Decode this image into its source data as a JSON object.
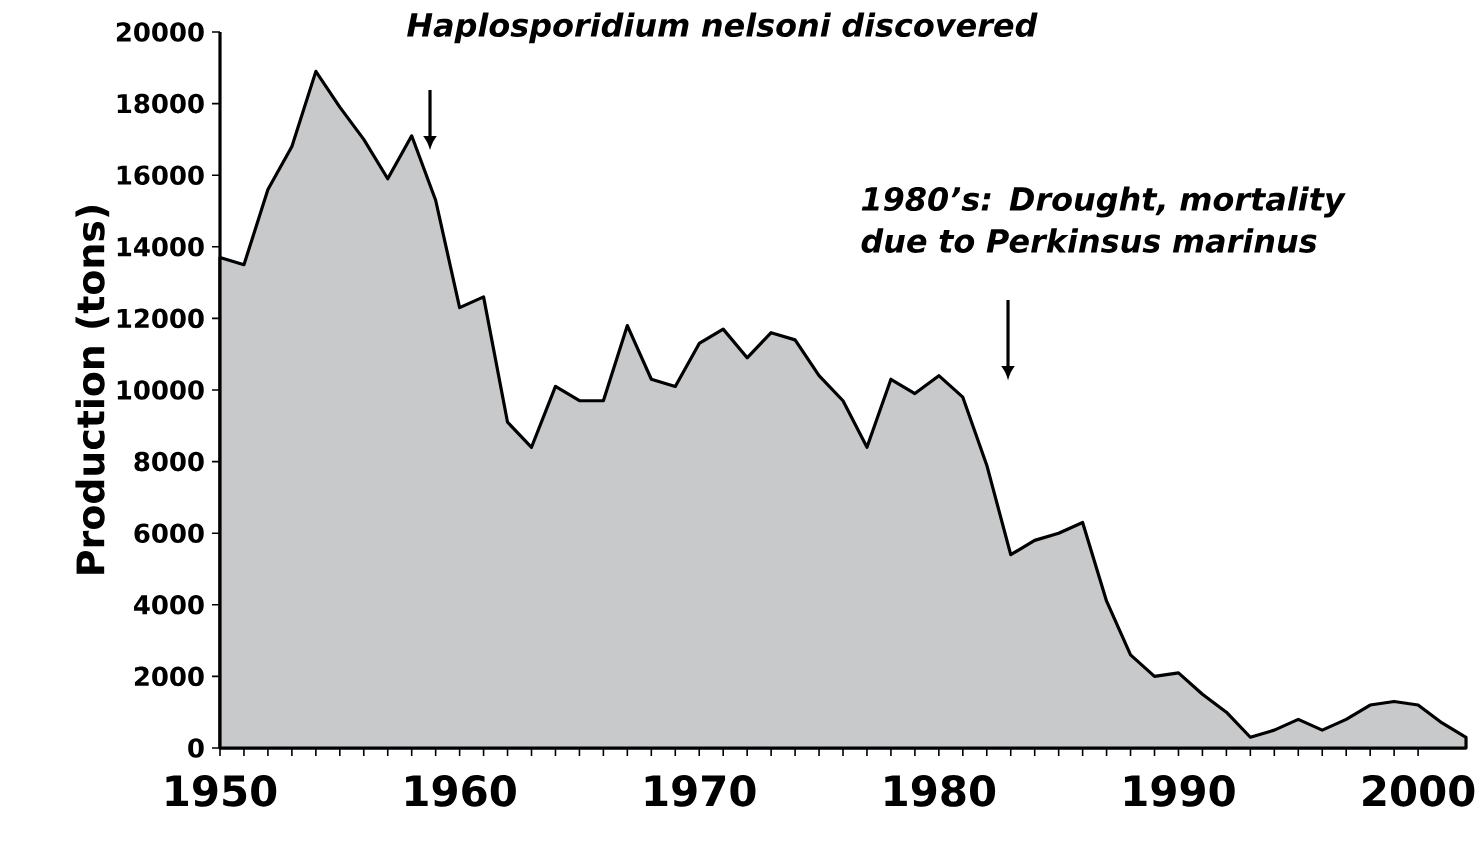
{
  "chart_data": {
    "type": "area",
    "ylabel": "Production (tons)",
    "x": [
      1950,
      1951,
      1952,
      1953,
      1954,
      1955,
      1956,
      1957,
      1958,
      1959,
      1960,
      1961,
      1962,
      1963,
      1964,
      1965,
      1966,
      1967,
      1968,
      1969,
      1970,
      1971,
      1972,
      1973,
      1974,
      1975,
      1976,
      1977,
      1978,
      1979,
      1980,
      1981,
      1982,
      1983,
      1984,
      1985,
      1986,
      1987,
      1988,
      1989,
      1990,
      1991,
      1992,
      1993,
      1994,
      1995,
      1996,
      1997,
      1998,
      1999,
      2000,
      2001,
      2002
    ],
    "values": [
      13700,
      13500,
      15600,
      16800,
      18900,
      17900,
      17000,
      15900,
      17100,
      15300,
      12300,
      12600,
      9100,
      8400,
      10100,
      9700,
      9700,
      11800,
      10300,
      10100,
      11300,
      11700,
      10900,
      11600,
      11400,
      10400,
      9700,
      8400,
      10300,
      9900,
      10400,
      9800,
      7900,
      5400,
      5800,
      6000,
      6300,
      4100,
      2600,
      2000,
      2100,
      1500,
      1000,
      300,
      500,
      800,
      500,
      800,
      1200,
      1300,
      1200,
      700,
      300
    ],
    "color": "#c8c9cb",
    "xlim": [
      1950,
      2002
    ],
    "ylim": [
      0,
      20000
    ],
    "xticks": [
      1950,
      1960,
      1970,
      1980,
      1990,
      2000
    ],
    "yticks": [
      0,
      2000,
      4000,
      6000,
      8000,
      10000,
      12000,
      14000,
      16000,
      18000,
      20000
    ],
    "grid": false,
    "annotations": [
      "Haplosporidium nelsoni discovered",
      "1980’s: Drought, mortality due to Perkinsus marinus"
    ]
  }
}
